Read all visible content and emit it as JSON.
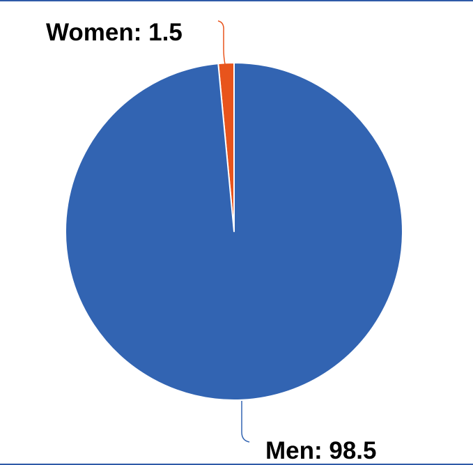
{
  "chart_data": {
    "type": "pie",
    "title": "",
    "categories": [
      "Women",
      "Men"
    ],
    "values": [
      1.5,
      98.5
    ],
    "colors": [
      "#e8541c",
      "#3264b2"
    ],
    "data_labels": [
      {
        "category": "Women",
        "text": "Women: 1.5"
      },
      {
        "category": "Men",
        "text": "Men: 98.5"
      }
    ],
    "legend": "none",
    "start_angle_deg": 0,
    "direction": "counterclockwise"
  }
}
